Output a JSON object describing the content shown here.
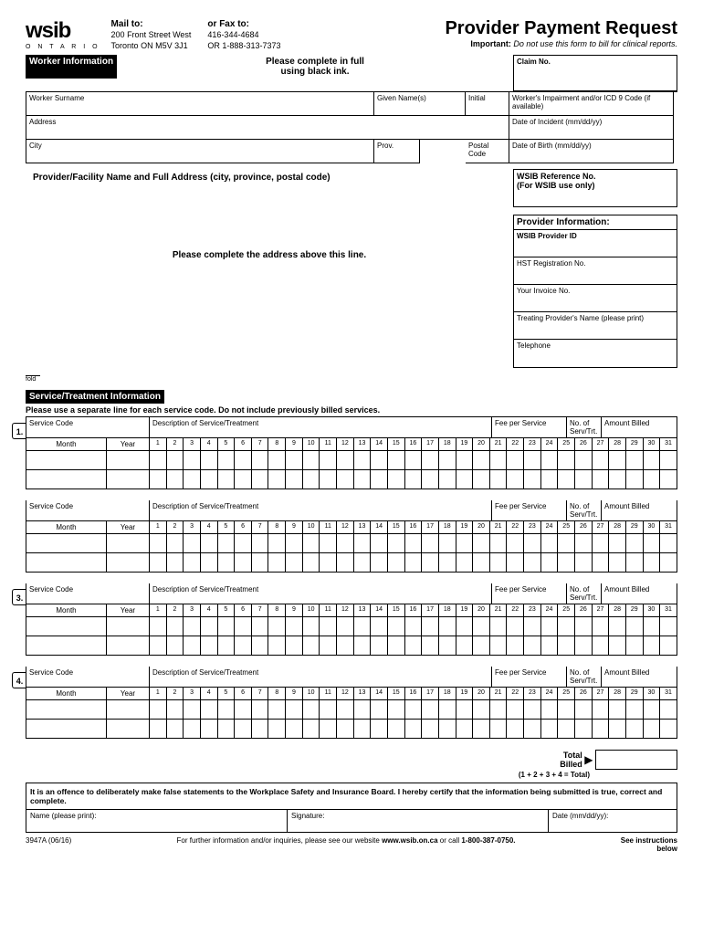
{
  "logo": {
    "main": "wsib",
    "sub": "O N T A R I O"
  },
  "mail": {
    "title": "Mail to:",
    "line1": "200 Front Street West",
    "line2": "Toronto ON  M5V 3J1"
  },
  "fax": {
    "title": "or Fax to:",
    "line1": "416-344-4684",
    "line2": "OR 1-888-313-7373"
  },
  "page_title": "Provider Payment Request",
  "important_label": "Important:",
  "important_text": "Do not use this form to bill for clinical reports.",
  "complete_note": "Please complete in full\nusing black ink.",
  "claim_no_label": "Claim No.",
  "worker_info": {
    "header": "Worker Information",
    "surname": "Worker Surname",
    "given": "Given Name(s)",
    "initial": "Initial",
    "impairment": "Worker's Impairment and/or ICD 9 Code (if available)",
    "address": "Address",
    "incident": "Date of Incident (mm/dd/yy)",
    "city": "City",
    "prov": "Prov.",
    "postal": "Postal Code",
    "dob": "Date of Birth (mm/dd/yy)"
  },
  "provider_facility": "Provider/Facility Name and Full Address (city, province, postal code)",
  "wsib_ref": "WSIB Reference No.\n(For WSIB use only)",
  "address_note": "Please complete the address above this line.",
  "provider_info": {
    "header": "Provider Information:",
    "id": "WSIB Provider ID",
    "hst": "HST Registration No.",
    "invoice": "Your Invoice No.",
    "treating": "Treating Provider's Name (please print)",
    "tel": "Telephone"
  },
  "fold": "fold",
  "service": {
    "header": "Service/Treatment Information",
    "note": "Please use a separate line for each service code. Do not include previously billed services.",
    "code": "Service Code",
    "desc": "Description of Service/Treatment",
    "fee": "Fee per Service",
    "num": "No. of Serv/Trt.",
    "amt": "Amount Billed",
    "month": "Month",
    "year": "Year",
    "rows": [
      "1.",
      "",
      "3.",
      "4."
    ]
  },
  "total": {
    "label": "Total\nBilled",
    "formula": "(1 + 2 + 3 + 4 = Total)"
  },
  "offence": "It is an offence to deliberately make false statements to the Workplace Safety and Insurance Board.  I hereby certify that the information being submitted is true, correct and complete.",
  "sign": {
    "name": "Name (please print):",
    "sig": "Signature:",
    "date": "Date (mm/dd/yy):"
  },
  "footer": {
    "form_no": "3947A (06/16)",
    "text1": "For further information and/or inquiries, please see our website ",
    "url": "www.wsib.on.ca",
    "text2": " or call ",
    "phone": "1-800-387-0750.",
    "instr": "See instructions\nbelow"
  }
}
